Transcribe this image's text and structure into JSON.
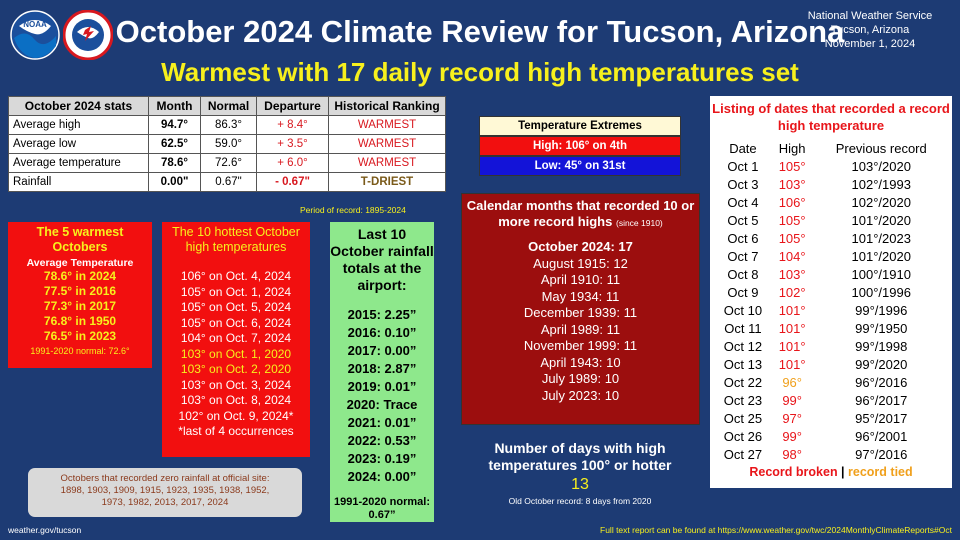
{
  "header": {
    "title": "October 2024 Climate Review for Tucson, Arizona",
    "subtitle": "Warmest with 17 daily record high temperatures set",
    "nws_line1": "National Weather Service",
    "nws_line2": "Tucson, Arizona",
    "nws_line3": "November 1, 2024",
    "logo_noaa_text": "NOAA",
    "logo_nws_text": "NATIONAL WEATHER SERVICE"
  },
  "stats": {
    "headers": [
      "October 2024 stats",
      "Month",
      "Normal",
      "Departure",
      "Historical Ranking"
    ],
    "rows": [
      {
        "label": "Average high",
        "month": "94.7°",
        "normal": "86.3°",
        "departure": "+ 8.4°",
        "ranking": "WARMEST"
      },
      {
        "label": "Average low",
        "month": "62.5°",
        "normal": "59.0°",
        "departure": "+ 3.5°",
        "ranking": "WARMEST"
      },
      {
        "label": "Average temperature",
        "month": "78.6°",
        "normal": "72.6°",
        "departure": "+ 6.0°",
        "ranking": "WARMEST"
      },
      {
        "label": "Rainfall",
        "month": "0.00\"",
        "normal": "0.67\"",
        "departure": "- 0.67\"",
        "ranking": "T-DRIEST"
      }
    ],
    "period": "Period of record: 1895-2024"
  },
  "warmest5": {
    "title": "The 5 warmest Octobers",
    "subtitle": "Average Temperature",
    "items": [
      "78.6° in 2024",
      "77.5° in 2016",
      "77.3° in 2017",
      "76.8° in 1950",
      "76.5° in 2023"
    ],
    "normal": "1991-2020 normal: 72.6°"
  },
  "hottest10": {
    "title": "The 10 hottest October high temperatures",
    "items": [
      "106° on Oct. 4, 2024",
      "105° on Oct. 1, 2024",
      "105° on Oct. 5, 2024",
      "105° on Oct. 6, 2024",
      "104° on Oct. 7, 2024",
      "103° on Oct. 1, 2020",
      "103° on Oct. 2, 2020",
      "103° on Oct. 3, 2024",
      "103° on Oct. 8, 2024",
      "102° on Oct. 9, 2024*"
    ],
    "note": "*last of 4 occurrences"
  },
  "rainfall10": {
    "title": "Last 10 October rainfall totals at the airport:",
    "items": [
      "2015: 2.25”",
      "2016: 0.10”",
      "2017: 0.00”",
      "2018: 2.87”",
      "2019: 0.01”",
      "2020: Trace",
      "2021: 0.01”",
      "2022: 0.53”",
      "2023: 0.19”",
      "2024: 0.00”"
    ],
    "normal": "1991-2020 normal: 0.67”"
  },
  "zero_rain": {
    "title": "Octobers that recorded zero rainfall at official site:",
    "line1": "1898, 1903, 1909, 1915, 1923, 1935, 1938, 1952,",
    "line2": "1973, 1982, 2013, 2017, 2024"
  },
  "extremes": {
    "title": "Temperature Extremes",
    "high": "High: 106° on 4th",
    "low": "Low: 45° on 31st"
  },
  "calendar_months": {
    "title": "Calendar months that recorded 10 or more record highs",
    "since": "(since 1910)",
    "items": [
      "October 2024: 17",
      "August 1915: 12",
      "April 1910: 11",
      "May 1934: 11",
      "December 1939: 11",
      "April 1989: 11",
      "November 1999: 11",
      "April 1943: 10",
      "July 1989: 10",
      "July 2023: 10"
    ]
  },
  "days100": {
    "title": "Number of days with high temperatures 100° or hotter",
    "value": "13",
    "note": "Old October record: 8 days from 2020"
  },
  "records": {
    "title": "Listing of dates that recorded a record high temperature",
    "columns": [
      "Date",
      "High",
      "Previous record"
    ],
    "rows": [
      {
        "date": "Oct 1",
        "high": "105°",
        "prev": "103°/2020",
        "tied": false
      },
      {
        "date": "Oct 3",
        "high": "103°",
        "prev": "102°/1993",
        "tied": false
      },
      {
        "date": "Oct 4",
        "high": "106°",
        "prev": "102°/2020",
        "tied": false
      },
      {
        "date": "Oct 5",
        "high": "105°",
        "prev": "101°/2020",
        "tied": false
      },
      {
        "date": "Oct 6",
        "high": "105°",
        "prev": "101°/2023",
        "tied": false
      },
      {
        "date": "Oct 7",
        "high": "104°",
        "prev": "101°/2020",
        "tied": false
      },
      {
        "date": "Oct 8",
        "high": "103°",
        "prev": "100°/1910",
        "tied": false
      },
      {
        "date": "Oct 9",
        "high": "102°",
        "prev": "100°/1996",
        "tied": false
      },
      {
        "date": "Oct 10",
        "high": "101°",
        "prev": "99°/1996",
        "tied": false
      },
      {
        "date": "Oct 11",
        "high": "101°",
        "prev": "99°/1950",
        "tied": false
      },
      {
        "date": "Oct 12",
        "high": "101°",
        "prev": "99°/1998",
        "tied": false
      },
      {
        "date": "Oct 13",
        "high": "101°",
        "prev": "99°/2020",
        "tied": false
      },
      {
        "date": "Oct 22",
        "high": "96°",
        "prev": "96°/2016",
        "tied": true
      },
      {
        "date": "Oct 23",
        "high": "99°",
        "prev": "96°/2017",
        "tied": false
      },
      {
        "date": "Oct 25",
        "high": "97°",
        "prev": "95°/2017",
        "tied": false
      },
      {
        "date": "Oct 26",
        "high": "99°",
        "prev": "96°/2001",
        "tied": false
      },
      {
        "date": "Oct 27",
        "high": "98°",
        "prev": "97°/2016",
        "tied": false
      }
    ],
    "legend_broken": "Record broken",
    "legend_sep": " | ",
    "legend_tied": "record tied"
  },
  "footer": {
    "left": "weather.gov/tucson",
    "right": "Full text report can be found at https://www.weather.gov/twc/2024MonthlyClimateReports#Oct"
  },
  "colors": {
    "background": "#1d3b74",
    "yellow": "#f7f01d",
    "red": "#f20f0f",
    "dark_red": "#9c0e0e",
    "green": "#8ee88c",
    "blue": "#1313d8",
    "record_red": "#e8151a",
    "tied_orange": "#f0a01c"
  }
}
